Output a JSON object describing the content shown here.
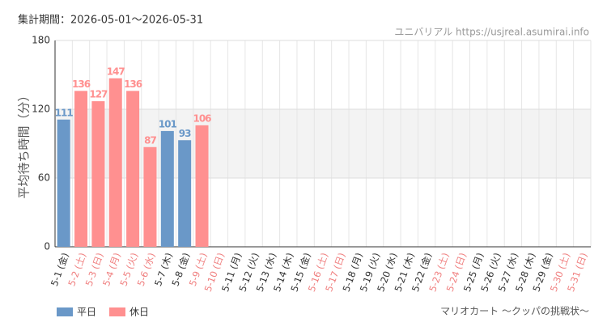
{
  "chart_data": {
    "type": "bar",
    "title": "集計期間：2026-05-01～2026-05-31",
    "subtitle": "ユニバリアル  https://usjreal.asumirai.info",
    "ylabel": "平均待ち時間（分）",
    "footer": "マリオカート ～クッパの挑戦状～",
    "categories": [
      "5-1 (金)",
      "5-2 (土)",
      "5-3 (日)",
      "5-4 (月)",
      "5-5 (火)",
      "5-6 (水)",
      "5-7 (木)",
      "5-8 (金)",
      "5-9 (土)",
      "5-10 (日)",
      "5-11 (月)",
      "5-12 (火)",
      "5-13 (水)",
      "5-14 (木)",
      "5-15 (金)",
      "5-16 (土)",
      "5-17 (日)",
      "5-18 (月)",
      "5-19 (火)",
      "5-20 (水)",
      "5-21 (木)",
      "5-22 (金)",
      "5-23 (土)",
      "5-24 (日)",
      "5-25 (月)",
      "5-26 (火)",
      "5-27 (水)",
      "5-28 (木)",
      "5-29 (金)",
      "5-30 (土)",
      "5-31 (日)"
    ],
    "category_label_colors": [
      "#333",
      "#f08080",
      "#f08080",
      "#f08080",
      "#f08080",
      "#f08080",
      "#333",
      "#333",
      "#f08080",
      "#f08080",
      "#333",
      "#333",
      "#333",
      "#333",
      "#333",
      "#f08080",
      "#f08080",
      "#333",
      "#333",
      "#333",
      "#333",
      "#333",
      "#f08080",
      "#f08080",
      "#333",
      "#333",
      "#333",
      "#333",
      "#333",
      "#f08080",
      "#f08080"
    ],
    "series": [
      {
        "name": "平日",
        "color": "#6a98c8",
        "values": [
          111,
          null,
          null,
          null,
          null,
          null,
          101,
          93,
          null,
          null,
          null,
          null,
          null,
          null,
          null,
          null,
          null,
          null,
          null,
          null,
          null,
          null,
          null,
          null,
          null,
          null,
          null,
          null,
          null,
          null,
          null
        ]
      },
      {
        "name": "休日",
        "color": "#ff9090",
        "values": [
          null,
          136,
          127,
          147,
          136,
          87,
          null,
          null,
          106,
          null,
          null,
          null,
          null,
          null,
          null,
          null,
          null,
          null,
          null,
          null,
          null,
          null,
          null,
          null,
          null,
          null,
          null,
          null,
          null,
          null,
          null
        ]
      }
    ],
    "ylim": [
      0,
      180
    ],
    "yticks": [
      0,
      60,
      120,
      180
    ],
    "shaded_range": [
      60,
      120
    ],
    "grid": true,
    "legend": "bottom-left"
  }
}
